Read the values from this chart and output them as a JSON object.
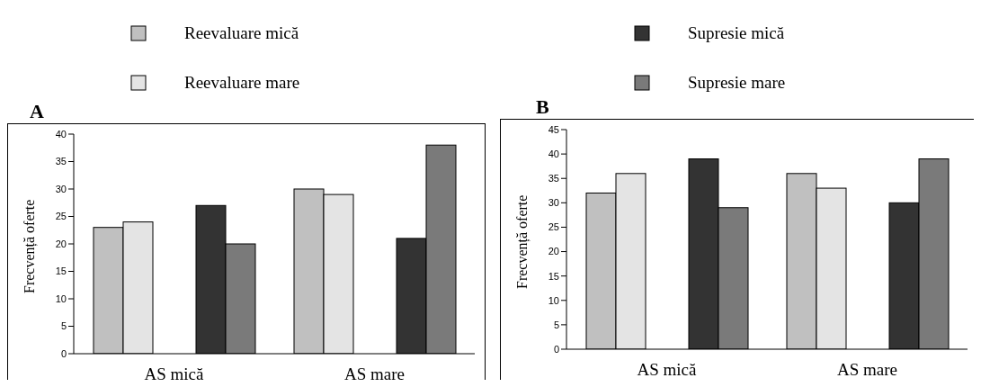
{
  "chart_data": [
    {
      "type": "bar",
      "title": "A",
      "ylabel": "Frecvență oferte",
      "categories": [
        "AS mică",
        "AS mare"
      ],
      "ylim": [
        0,
        40
      ],
      "yticks": [
        0,
        5,
        10,
        15,
        20,
        25,
        30,
        35,
        40
      ],
      "grid": false,
      "legend": "top",
      "series": [
        {
          "name": "Reevaluare mică",
          "color": "#c0c0c0",
          "values": [
            23,
            30
          ]
        },
        {
          "name": "Reevaluare mare",
          "color": "#e4e4e4",
          "values": [
            24,
            29
          ]
        },
        {
          "name": "Supresie mică",
          "color": "#333333",
          "values": [
            27,
            21
          ]
        },
        {
          "name": "Supresie mare",
          "color": "#7a7a7a",
          "values": [
            20,
            38
          ]
        }
      ]
    },
    {
      "type": "bar",
      "title": "B",
      "ylabel": "Frecvență oferte",
      "categories": [
        "AS mică",
        "AS mare"
      ],
      "ylim": [
        0,
        45
      ],
      "yticks": [
        0,
        5,
        10,
        15,
        20,
        25,
        30,
        35,
        40,
        45
      ],
      "grid": false,
      "series": [
        {
          "color": "#c0c0c0",
          "values": [
            32,
            36
          ]
        },
        {
          "color": "#e4e4e4",
          "values": [
            36,
            33
          ]
        },
        {
          "color": "#333333",
          "values": [
            39,
            30
          ]
        },
        {
          "color": "#7a7a7a",
          "values": [
            29,
            39
          ]
        }
      ]
    }
  ]
}
